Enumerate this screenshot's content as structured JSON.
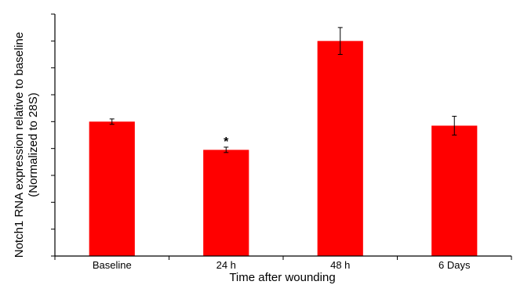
{
  "chart_data": {
    "type": "bar",
    "categories": [
      "Baseline",
      "24 h",
      "48 h",
      "6 Days"
    ],
    "values": [
      1.0,
      0.79,
      1.6,
      0.97
    ],
    "errors": [
      0.02,
      0.02,
      0.1,
      0.07
    ],
    "annotations": [
      {
        "category": "24 h",
        "text": "*"
      }
    ],
    "xlabel": "Time after wounding",
    "ylabel_lines": [
      "Notch1 RNA expression relative to baseline",
      "(Normalized to 28S)"
    ],
    "ylim": [
      0,
      1.8
    ],
    "ytick_step": 0.2,
    "ytick_labels_visible": false,
    "grid": false,
    "bar_color": "#ff0000",
    "axis_color": "#000000"
  }
}
